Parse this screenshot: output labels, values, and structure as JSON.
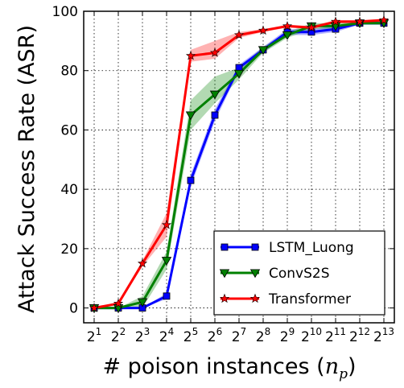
{
  "chart_data": {
    "type": "line",
    "x_tick_base": "2",
    "x_tick_exponents": [
      "1",
      "2",
      "3",
      "4",
      "5",
      "6",
      "7",
      "8",
      "9",
      "10",
      "11",
      "12",
      "13"
    ],
    "xlabel": "# poison instances (",
    "xlabel_symbol": "n",
    "xlabel_subscript": "p",
    "xlabel_close": ")",
    "ylabel": "Attack Success Rate (ASR)",
    "ylim": [
      -5,
      100
    ],
    "yticks": [
      0,
      20,
      40,
      60,
      80,
      100
    ],
    "grid": true,
    "legend_position": "lower-right",
    "series": [
      {
        "name": "LSTM_Luong",
        "color": "#0000ff",
        "marker": "square",
        "values": [
          0,
          0,
          0,
          4,
          43,
          65,
          81,
          87,
          93,
          93,
          94,
          96,
          96
        ],
        "band_low": [
          0,
          0,
          0,
          3,
          41,
          63,
          80,
          86,
          92,
          92,
          93,
          95.5,
          95.5
        ],
        "band_high": [
          0,
          0,
          0,
          5,
          45,
          67,
          82,
          88,
          94,
          94,
          95,
          96.5,
          96.5
        ]
      },
      {
        "name": "ConvS2S",
        "color": "#008000",
        "marker": "triangle-down",
        "values": [
          0,
          0,
          2,
          16,
          65,
          72,
          79,
          87,
          92,
          95,
          95,
          96,
          96
        ],
        "band_low": [
          0,
          0,
          0,
          13,
          60,
          69,
          77,
          86,
          91,
          94,
          94,
          95.5,
          95.5
        ],
        "band_high": [
          0,
          0,
          4,
          19,
          70,
          78,
          81,
          88,
          93,
          96,
          96,
          96.5,
          96.5
        ]
      },
      {
        "name": "Transformer",
        "color": "#ff0000",
        "marker": "star",
        "values": [
          0,
          1.5,
          15,
          28,
          85,
          86,
          92,
          93.5,
          95,
          94.5,
          96.5,
          96.5,
          97
        ],
        "band_low": [
          0,
          1,
          14,
          24,
          83,
          84,
          91,
          93,
          94.5,
          94,
          96,
          96,
          96.5
        ],
        "band_high": [
          0,
          2,
          16,
          32,
          87,
          90,
          93,
          94,
          95.5,
          95,
          97,
          97,
          97.5
        ]
      }
    ]
  }
}
